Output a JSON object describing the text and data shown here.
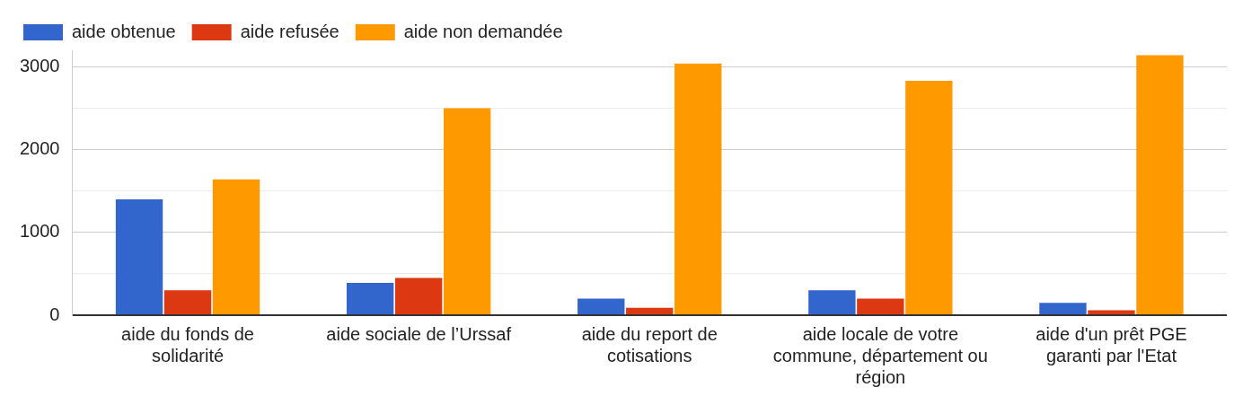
{
  "chart_data": {
    "type": "bar",
    "categories": [
      "aide du fonds de solidarité",
      "aide sociale de l’Urssaf",
      "aide du report de cotisations",
      "aide locale de votre commune, département ou région",
      "aide d'un prêt PGE garanti par l'Etat"
    ],
    "series": [
      {
        "name": "aide obtenue",
        "color": "#3366cc",
        "values": [
          1400,
          390,
          200,
          300,
          150
        ]
      },
      {
        "name": "aide refusée",
        "color": "#dc3912",
        "values": [
          300,
          450,
          90,
          200,
          60
        ]
      },
      {
        "name": "aide non demandée",
        "color": "#ff9900",
        "values": [
          1640,
          2500,
          3040,
          2830,
          3140
        ]
      }
    ],
    "ylim": [
      0,
      3200
    ],
    "yticks": [
      0,
      {
        "value": 500,
        "label": null
      },
      1000,
      {
        "value": 1500,
        "label": null
      },
      2000,
      {
        "value": 2500,
        "label": null
      },
      3000
    ],
    "grid": "y",
    "legend": "top left"
  }
}
